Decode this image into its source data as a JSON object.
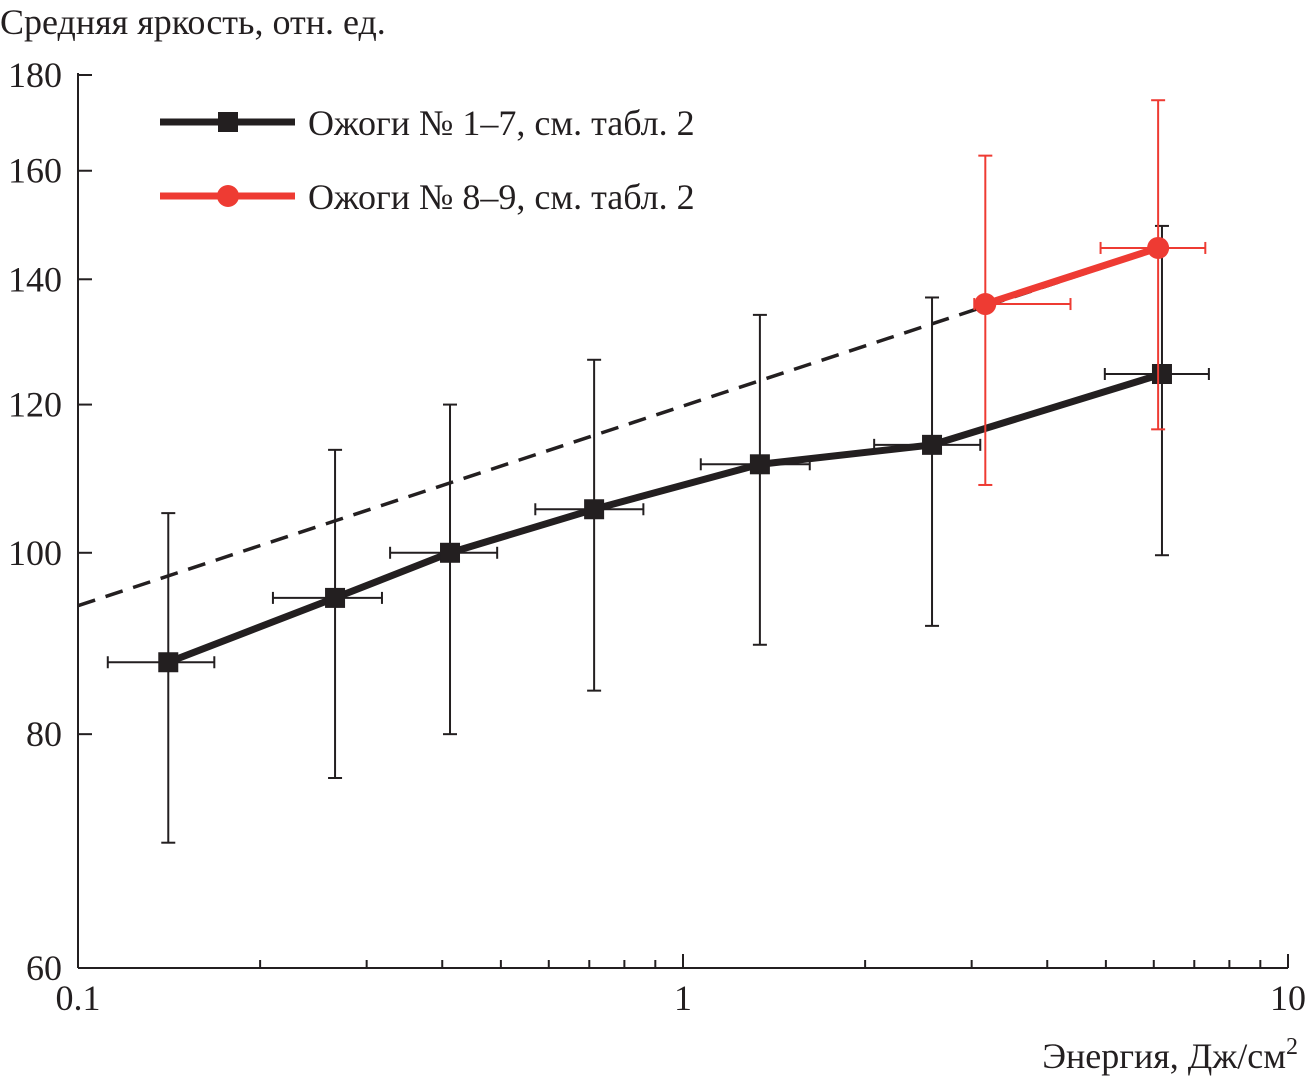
{
  "chart_data": {
    "type": "line",
    "title": "Средняя яркость, отн. ед.",
    "xlabel": "Энергия, Дж/см",
    "xlabel_sup": "2",
    "ylabel": "Средняя яркость, отн. ед.",
    "x_scale": "log",
    "y_scale": "log",
    "xlim": [
      0.1,
      10
    ],
    "ylim": [
      60,
      180
    ],
    "x_ticks": [
      0.1,
      1,
      10
    ],
    "x_tick_labels": [
      "0.1",
      "1",
      "10"
    ],
    "y_ticks": [
      60,
      80,
      100,
      120,
      140,
      160,
      180
    ],
    "y_tick_labels": [
      "60",
      "80",
      "100",
      "120",
      "140",
      "160",
      "180"
    ],
    "grid": false,
    "legend_position": "top-left",
    "series": [
      {
        "name": "Ожоги № 1–7, см. табл. 2",
        "color": "#231f20",
        "marker": "square",
        "x": [
          0.141,
          0.266,
          0.412,
          0.713,
          1.34,
          2.58,
          6.19
        ],
        "y": [
          87.4,
          94.6,
          100,
          105.5,
          111.5,
          114.2,
          124.6
        ],
        "y_err_low": [
          70,
          75.8,
          80,
          84.4,
          89.3,
          91.4,
          99.7
        ],
        "y_err_high": [
          105,
          113.5,
          120,
          126.8,
          134,
          136.9,
          149.5
        ],
        "x_err_low": [
          0.112,
          0.21,
          0.328,
          0.57,
          1.07,
          2.07,
          4.98
        ],
        "x_err_high": [
          0.168,
          0.318,
          0.493,
          0.86,
          1.62,
          3.1,
          7.4
        ]
      },
      {
        "name": "Ожоги № 8–9, см. табл. 2",
        "color": "#ee3b33",
        "marker": "circle",
        "x": [
          3.16,
          6.1
        ],
        "y": [
          135.8,
          145.5
        ],
        "y_err_low": [
          108.7,
          116.4
        ],
        "y_err_high": [
          163,
          174.5
        ],
        "x_err_low": [
          3.03,
          4.9
        ],
        "x_err_high": [
          4.37,
          7.3
        ]
      }
    ],
    "fit_line": {
      "style": "dashed",
      "color": "#231f20",
      "x": [
        0.1,
        6.19
      ],
      "y": [
        93.7,
        145.5
      ]
    }
  }
}
